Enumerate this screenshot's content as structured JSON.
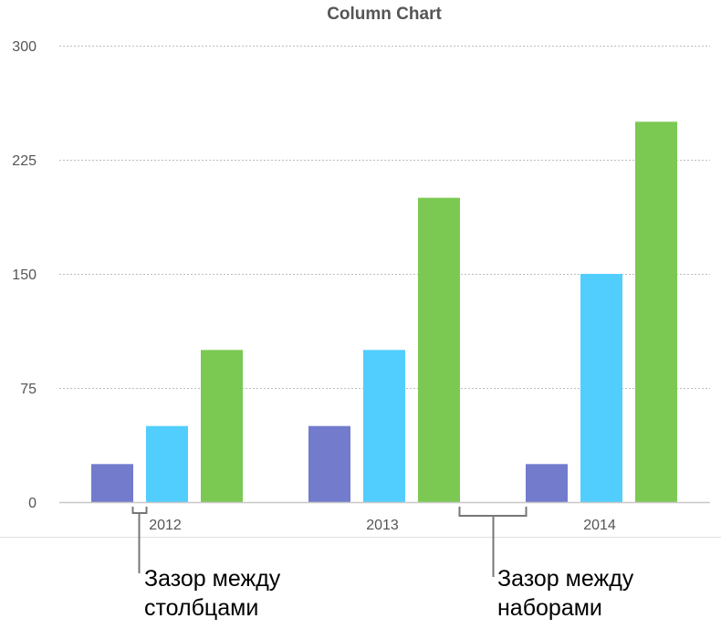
{
  "chart_data": {
    "type": "bar",
    "title": "Column Chart",
    "categories": [
      "2012",
      "2013",
      "2014"
    ],
    "series": [
      {
        "values": [
          25,
          50,
          25
        ],
        "color": "#727bcc"
      },
      {
        "values": [
          50,
          100,
          150
        ],
        "color": "#52cefe"
      },
      {
        "values": [
          100,
          200,
          250
        ],
        "color": "#7bc952"
      }
    ],
    "ylim": [
      0,
      300
    ],
    "yticks": [
      0,
      75,
      150,
      225,
      300
    ],
    "grid": true,
    "xlabel": "",
    "ylabel": ""
  },
  "annotations": {
    "bar_gap": [
      "Зазор между",
      "столбцами"
    ],
    "set_gap": [
      "Зазор между",
      "наборами"
    ]
  }
}
